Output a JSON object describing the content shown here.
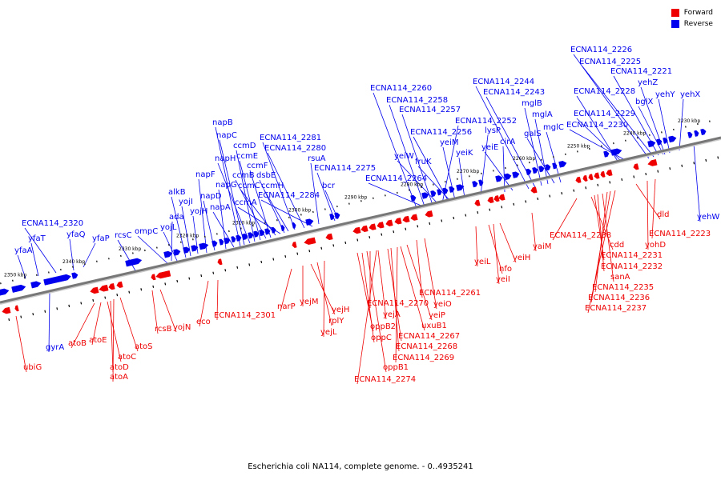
{
  "caption": "Escherichia coli NA114, complete genome. - 0..4935241",
  "legend": [
    {
      "label": "Forward",
      "color": "#ee0000"
    },
    {
      "label": "Reverse",
      "color": "#0000ee"
    }
  ],
  "colors": {
    "forward": "#ee0000",
    "reverse": "#0000ee",
    "backbone": "#777777"
  },
  "kbp_labels": [
    "2350 kbp",
    "2340 kbp",
    "2330 kbp",
    "2320 kbp",
    "2310 kbp",
    "2300 kbp",
    "2290 kbp",
    "2280 kbp",
    "2270 kbp",
    "2260 kbp",
    "2250 kbp",
    "2240 kbp",
    "2230 kbp"
  ],
  "reverse_labels": [
    "yfaA",
    "yfaT",
    "ECNA114_2320",
    "yfaQ",
    "yfaP",
    "rcsC",
    "ompC",
    "ada",
    "yojL",
    "alkB",
    "yojI",
    "yojH",
    "napF",
    "napD",
    "napG",
    "napA",
    "napB",
    "napC",
    "napH",
    "ccmD",
    "ccmE",
    "ccmB",
    "ccmF",
    "ccmC",
    "ccmA",
    "dsbE",
    "ccmH",
    "ECNA114_2281",
    "ECNA114_2280",
    "ECNA114_2284",
    "rsuA",
    "ECNA114_2275",
    "bcr",
    "ECNA114_2260",
    "ECNA114_2258",
    "ECNA114_2257",
    "ECNA114_2252",
    "ECNA114_2256",
    "yeiM",
    "yeiW",
    "fruK",
    "ECNA114_2264",
    "yeiK",
    "lysP",
    "cirA",
    "yeiE",
    "ECNA114_2244",
    "ECNA114_2243",
    "mglB",
    "mglA",
    "galS",
    "mglC",
    "ECNA114_2226",
    "ECNA114_2225",
    "ECNA114_2221",
    "yehZ",
    "ECNA114_2228",
    "yehY",
    "bglX",
    "yehX",
    "ECNA114_2229",
    "ECNA114_2230",
    "gyrA",
    "yehW"
  ],
  "forward_labels": [
    "ubiG",
    "atoB",
    "atoE",
    "atoC",
    "atoD",
    "atoA",
    "atoS",
    "rcsB",
    "yojN",
    "eco",
    "ECNA114_2301",
    "narP",
    "yejM",
    "yejH",
    "rplY",
    "yejL",
    "ECNA114_2261",
    "yeiO",
    "ECNA114_2270",
    "yejA",
    "yeiP",
    "oppB2",
    "uxuB1",
    "oppC",
    "ECNA114_2267",
    "ECNA114_2268",
    "ECNA114_2269",
    "oppB1",
    "ECNA114_2274",
    "yeiL",
    "nfo",
    "yeiI",
    "yeiH",
    "yaiM",
    "ECNA114_2238",
    "cdd",
    "ECNA114_2231",
    "ECNA114_2232",
    "sanA",
    "ECNA114_2235",
    "ECNA114_2236",
    "ECNA114_2237",
    "dld",
    "yohD",
    "ECNA114_2223"
  ]
}
